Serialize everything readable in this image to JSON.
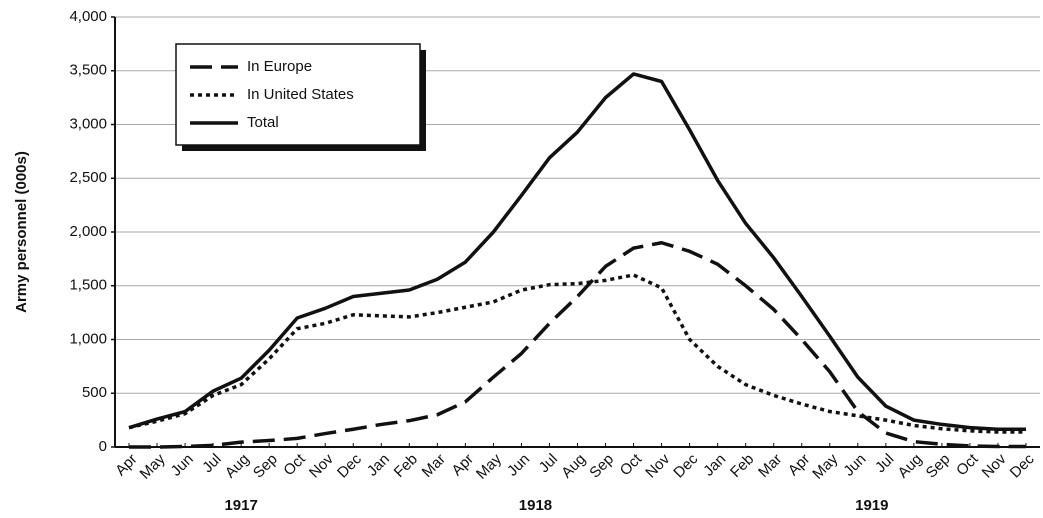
{
  "chart_data": {
    "type": "line",
    "y_label": "Army personnel (000s)",
    "categories": [
      "Apr",
      "May",
      "Jun",
      "Jul",
      "Aug",
      "Sep",
      "Oct",
      "Nov",
      "Dec",
      "Jan",
      "Feb",
      "Mar",
      "Apr",
      "May",
      "Jun",
      "Jul",
      "Aug",
      "Sep",
      "Oct",
      "Nov",
      "Dec",
      "Jan",
      "Feb",
      "Mar",
      "Apr",
      "May",
      "Jun",
      "Jul",
      "Aug",
      "Sep",
      "Oct",
      "Nov",
      "Dec"
    ],
    "x_groups": [
      {
        "label": "1917",
        "count": 9
      },
      {
        "label": "1918",
        "count": 12
      },
      {
        "label": "1919",
        "count": 12
      }
    ],
    "series": [
      {
        "name": "In Europe",
        "color": "#111111",
        "style": "dashed",
        "values": [
          0,
          0,
          5,
          15,
          45,
          60,
          80,
          125,
          165,
          210,
          245,
          300,
          420,
          650,
          870,
          1150,
          1400,
          1680,
          1850,
          1900,
          1820,
          1700,
          1500,
          1280,
          1000,
          700,
          330,
          130,
          50,
          25,
          10,
          5,
          5
        ]
      },
      {
        "name": "In United States",
        "color": "#111111",
        "style": "dotted",
        "values": [
          180,
          240,
          310,
          480,
          580,
          820,
          1100,
          1150,
          1230,
          1220,
          1210,
          1250,
          1300,
          1350,
          1460,
          1510,
          1520,
          1550,
          1600,
          1480,
          1000,
          750,
          580,
          480,
          400,
          330,
          290,
          250,
          200,
          170,
          150,
          140,
          140
        ]
      },
      {
        "name": "Total",
        "color": "#111111",
        "style": "solid",
        "values": [
          180,
          260,
          330,
          520,
          640,
          900,
          1200,
          1290,
          1400,
          1430,
          1460,
          1560,
          1720,
          2000,
          2340,
          2690,
          2930,
          3250,
          3470,
          3400,
          2950,
          2480,
          2080,
          1760,
          1400,
          1030,
          650,
          380,
          250,
          210,
          180,
          165,
          165
        ]
      }
    ],
    "ylim": [
      0,
      4000
    ],
    "yticks": [
      0,
      500,
      {
        "value": 1000,
        "label": "1,000"
      },
      {
        "value": 1500,
        "label": "1,500"
      },
      {
        "value": 2000,
        "label": "2,000"
      },
      {
        "value": 2500,
        "label": "2,500"
      },
      {
        "value": 3000,
        "label": "3,000"
      },
      {
        "value": 3500,
        "label": "3,500"
      },
      {
        "value": 4000,
        "label": "4,000"
      }
    ],
    "grid": true
  }
}
